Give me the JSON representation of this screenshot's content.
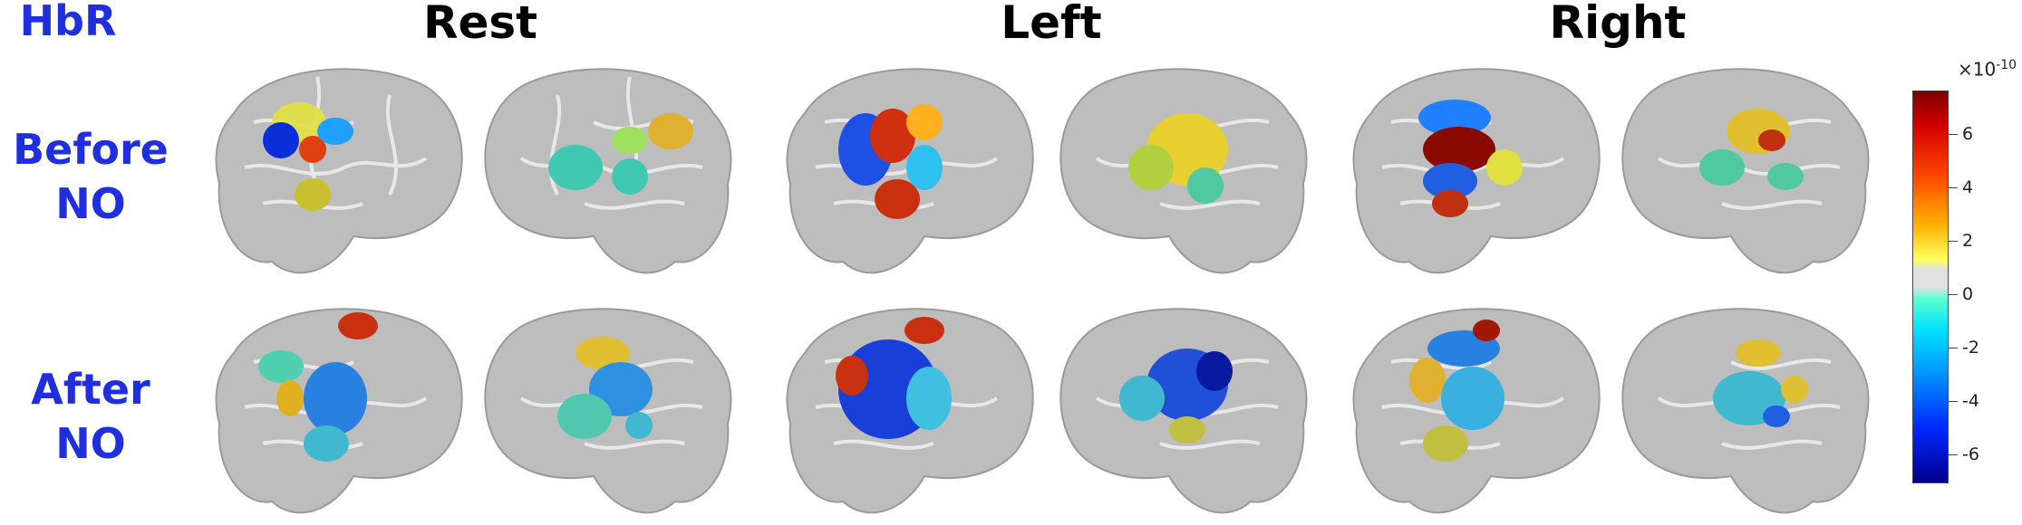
{
  "corner_label": "HbR",
  "columns": [
    "Rest",
    "Left",
    "Right"
  ],
  "rows": [
    {
      "line1": "Before",
      "line2": "NO"
    },
    {
      "line1": "After",
      "line2": "NO"
    }
  ],
  "colorbar": {
    "exponent_base": "×10",
    "exponent_power": "-10",
    "ticks": [
      "6",
      "4",
      "2",
      "0",
      "-2",
      "-4",
      "-6"
    ],
    "colormap": "jet",
    "zero_color": "#e2e2e2"
  },
  "colors": {
    "label_blue": "#1f2fe0",
    "brain_gray": "#bdbdbd"
  }
}
